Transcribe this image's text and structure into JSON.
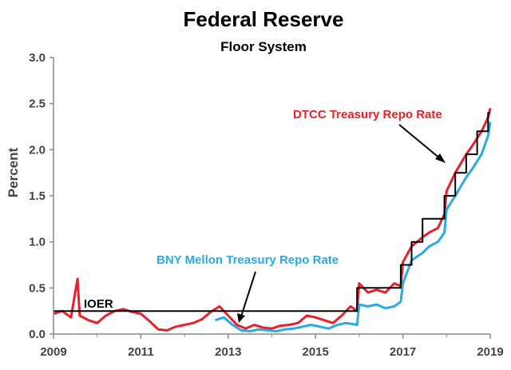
{
  "chart_data": {
    "type": "line",
    "title": "Federal Reserve",
    "subtitle": "Floor System",
    "xlabel": "",
    "ylabel": "Percent",
    "xlim": [
      2009,
      2019
    ],
    "ylim": [
      0,
      3.0
    ],
    "x_ticks": [
      "2009",
      "2011",
      "2013",
      "2015",
      "2017",
      "2019"
    ],
    "y_ticks": [
      "0.0",
      "0.5",
      "1.0",
      "1.5",
      "2.0",
      "2.5",
      "3.0"
    ],
    "grid": false,
    "colors": {
      "dtcc": "#e8202a",
      "bny": "#29abe2",
      "ioer": "#000000",
      "axis": "#888888"
    },
    "annotations": {
      "dtcc": "DTCC Treasury Repo Rate",
      "bny": "BNY Mellon Treasury Repo Rate",
      "ioer": "IOER"
    },
    "series": [
      {
        "name": "DTCC Treasury Repo Rate",
        "x": [
          2009.0,
          2009.2,
          2009.4,
          2009.55,
          2009.6,
          2009.8,
          2010.0,
          2010.2,
          2010.4,
          2010.6,
          2010.8,
          2011.0,
          2011.2,
          2011.4,
          2011.6,
          2011.8,
          2012.0,
          2012.2,
          2012.4,
          2012.6,
          2012.8,
          2013.0,
          2013.2,
          2013.4,
          2013.6,
          2013.8,
          2014.0,
          2014.2,
          2014.4,
          2014.6,
          2014.8,
          2015.0,
          2015.2,
          2015.4,
          2015.6,
          2015.8,
          2015.95,
          2016.0,
          2016.2,
          2016.4,
          2016.6,
          2016.8,
          2016.95,
          2017.0,
          2017.2,
          2017.45,
          2017.6,
          2017.8,
          2017.95,
          2018.0,
          2018.2,
          2018.45,
          2018.6,
          2018.8,
          2018.95,
          2019.0
        ],
        "y": [
          0.22,
          0.25,
          0.18,
          0.6,
          0.2,
          0.15,
          0.12,
          0.2,
          0.25,
          0.27,
          0.24,
          0.22,
          0.14,
          0.05,
          0.04,
          0.08,
          0.1,
          0.12,
          0.16,
          0.24,
          0.3,
          0.2,
          0.1,
          0.06,
          0.1,
          0.07,
          0.06,
          0.09,
          0.1,
          0.12,
          0.2,
          0.18,
          0.15,
          0.12,
          0.2,
          0.3,
          0.25,
          0.55,
          0.45,
          0.48,
          0.45,
          0.55,
          0.52,
          0.78,
          0.95,
          1.05,
          1.1,
          1.15,
          1.3,
          1.55,
          1.75,
          1.95,
          2.05,
          2.2,
          2.35,
          2.45
        ]
      },
      {
        "name": "BNY Mellon Treasury Repo Rate",
        "x": [
          2012.7,
          2012.9,
          2013.1,
          2013.3,
          2013.5,
          2013.7,
          2013.9,
          2014.1,
          2014.3,
          2014.5,
          2014.7,
          2014.9,
          2015.1,
          2015.3,
          2015.5,
          2015.7,
          2015.95,
          2016.0,
          2016.2,
          2016.4,
          2016.6,
          2016.8,
          2016.95,
          2017.0,
          2017.2,
          2017.45,
          2017.6,
          2017.8,
          2017.95,
          2018.0,
          2018.2,
          2018.45,
          2018.6,
          2018.8,
          2018.95,
          2019.0
        ],
        "y": [
          0.15,
          0.18,
          0.1,
          0.04,
          0.03,
          0.05,
          0.04,
          0.03,
          0.05,
          0.06,
          0.08,
          0.1,
          0.08,
          0.06,
          0.1,
          0.12,
          0.1,
          0.32,
          0.3,
          0.32,
          0.28,
          0.3,
          0.35,
          0.55,
          0.8,
          0.88,
          0.95,
          1.0,
          1.1,
          1.35,
          1.5,
          1.7,
          1.8,
          1.95,
          2.15,
          2.3
        ]
      },
      {
        "name": "IOER",
        "x": [
          2009.0,
          2015.95,
          2015.95,
          2016.95,
          2016.95,
          2017.2,
          2017.2,
          2017.45,
          2017.45,
          2017.95,
          2017.95,
          2018.2,
          2018.2,
          2018.45,
          2018.45,
          2018.7,
          2018.7,
          2018.95,
          2018.95,
          2019.0
        ],
        "y": [
          0.25,
          0.25,
          0.5,
          0.5,
          0.75,
          0.75,
          1.0,
          1.0,
          1.25,
          1.25,
          1.5,
          1.5,
          1.75,
          1.75,
          1.95,
          1.95,
          2.2,
          2.2,
          2.4,
          2.4
        ]
      }
    ]
  }
}
